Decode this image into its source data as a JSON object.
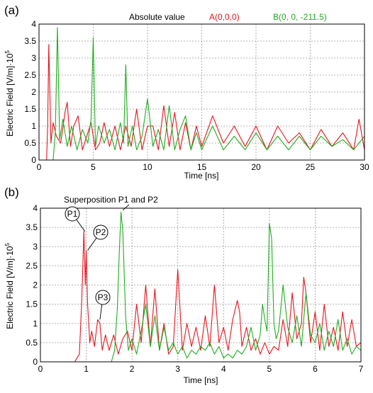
{
  "colors": {
    "series_a": "#e8141c",
    "series_b": "#1fad1f",
    "grid": "#9a9a9a",
    "axis": "#000000"
  },
  "chart_data": [
    {
      "panel_label": "(a)",
      "type": "line",
      "title": "Absolute value",
      "xlabel": "Time [ns]",
      "ylabel": "Electric Field [V/m]·10",
      "ylabel_exponent": "5",
      "xlim": [
        0,
        30
      ],
      "ylim": [
        0,
        4
      ],
      "xticks": [
        0,
        5,
        10,
        15,
        20,
        25,
        30
      ],
      "yticks": [
        0,
        0.5,
        1,
        1.5,
        2,
        2.5,
        3,
        3.5,
        4
      ],
      "grid": true,
      "legend_position": "top",
      "series": [
        {
          "name": "A(0,0,0)",
          "color": "#e8141c",
          "x": [
            0,
            0.7,
            0.8,
            0.9,
            1.0,
            1.1,
            1.3,
            1.6,
            2.0,
            2.4,
            2.6,
            2.9,
            3.2,
            3.6,
            4.0,
            4.4,
            4.8,
            5.2,
            5.6,
            6.0,
            6.5,
            7.0,
            7.5,
            8.0,
            8.5,
            9.0,
            9.5,
            10.0,
            10.5,
            11.0,
            11.5,
            12.0,
            12.5,
            13.0,
            13.5,
            14.0,
            14.5,
            15.0,
            16.0,
            17.0,
            18.0,
            19.0,
            20.0,
            21.0,
            22.0,
            23.0,
            24.0,
            25.0,
            26.0,
            27.0,
            28.0,
            29.0,
            29.5,
            30.0
          ],
          "y": [
            0,
            0,
            1.0,
            3.4,
            2.0,
            0.5,
            1.1,
            0.7,
            0.5,
            1.4,
            1.7,
            0.4,
            1.0,
            1.3,
            0.3,
            0.7,
            1.1,
            0.3,
            0.5,
            1.1,
            0.4,
            1.0,
            0.3,
            1.0,
            0.4,
            1.5,
            0.3,
            1.0,
            1.0,
            0.3,
            1.6,
            0.4,
            1.4,
            0.3,
            1.1,
            0.3,
            1.0,
            0.4,
            1.3,
            0.5,
            1.0,
            0.4,
            1.0,
            0.3,
            1.0,
            0.5,
            0.8,
            0.3,
            0.9,
            0.4,
            0.8,
            0.3,
            1.2,
            0.3
          ]
        },
        {
          "name": "B(0, 0, -211.5)",
          "color": "#1fad1f",
          "x": [
            0,
            1.3,
            1.5,
            1.7,
            1.9,
            2.2,
            2.6,
            3.0,
            3.5,
            4.0,
            4.5,
            4.8,
            5.0,
            5.2,
            5.5,
            6.0,
            6.5,
            7.0,
            7.5,
            7.8,
            8.0,
            8.2,
            8.6,
            9.0,
            9.5,
            10.0,
            10.5,
            11.0,
            11.5,
            12.0,
            12.5,
            13.0,
            13.5,
            14.0,
            14.5,
            15.0,
            16.0,
            17.0,
            18.0,
            19.0,
            20.0,
            21.0,
            22.0,
            23.0,
            24.0,
            25.0,
            26.0,
            27.0,
            28.0,
            29.0,
            30.0
          ],
          "y": [
            0,
            0,
            0.8,
            3.9,
            0.6,
            1.2,
            0.4,
            1.0,
            0.3,
            0.9,
            0.5,
            1.2,
            3.6,
            0.4,
            1.0,
            0.5,
            0.9,
            0.3,
            1.1,
            0.5,
            2.8,
            0.4,
            1.0,
            0.3,
            0.7,
            1.8,
            0.4,
            0.9,
            0.3,
            1.6,
            0.3,
            0.9,
            1.3,
            0.3,
            0.8,
            0.3,
            1.0,
            0.3,
            0.7,
            0.3,
            0.8,
            0.3,
            0.7,
            0.3,
            0.7,
            0.3,
            0.7,
            0.4,
            0.6,
            0.3,
            0.7
          ]
        }
      ]
    },
    {
      "panel_label": "(b)",
      "type": "line",
      "title": "",
      "xlabel": "Time [ns]",
      "ylabel": "Electric Field [V/m]·10",
      "ylabel_exponent": "5",
      "xlim": [
        0,
        7
      ],
      "ylim": [
        0,
        4
      ],
      "xticks": [
        0,
        1,
        2,
        3,
        4,
        5,
        6,
        7
      ],
      "yticks": [
        0,
        0.5,
        1,
        1.5,
        2,
        2.5,
        3,
        3.5,
        4
      ],
      "grid": true,
      "annotations": [
        {
          "text": "Superposition P1 and P2",
          "x": 1.8,
          "y": 3.95
        },
        {
          "text": "P1",
          "x": 0.97,
          "y": 3.4
        },
        {
          "text": "P2",
          "x": 1.03,
          "y": 2.9
        },
        {
          "text": "P3",
          "x": 1.3,
          "y": 1.1
        }
      ],
      "series": [
        {
          "name": "A(0,0,0)",
          "color": "#e8141c",
          "x": [
            0,
            0.75,
            0.85,
            0.9,
            0.95,
            0.98,
            1.0,
            1.03,
            1.08,
            1.12,
            1.18,
            1.25,
            1.3,
            1.35,
            1.42,
            1.5,
            1.6,
            1.7,
            1.8,
            1.9,
            2.0,
            2.1,
            2.2,
            2.3,
            2.4,
            2.5,
            2.6,
            2.7,
            2.8,
            2.9,
            3.0,
            3.1,
            3.2,
            3.3,
            3.4,
            3.5,
            3.6,
            3.7,
            3.8,
            3.9,
            4.0,
            4.1,
            4.2,
            4.3,
            4.35,
            4.4,
            4.5,
            4.6,
            4.7,
            4.8,
            4.9,
            5.0,
            5.1,
            5.2,
            5.3,
            5.4,
            5.5,
            5.6,
            5.7,
            5.75,
            5.8,
            5.9,
            6.0,
            6.1,
            6.2,
            6.3,
            6.4,
            6.5,
            6.6,
            6.7,
            6.8,
            6.9,
            7.0
          ],
          "y": [
            0,
            0,
            0.2,
            1.5,
            3.4,
            2.0,
            2.9,
            1.5,
            0.5,
            0.8,
            0.4,
            1.1,
            1.0,
            0.3,
            0.7,
            0.3,
            0.7,
            0.2,
            0.6,
            0.8,
            0.3,
            1.5,
            0.5,
            2.0,
            0.4,
            1.9,
            0.3,
            1.0,
            0.2,
            0.4,
            2.4,
            0.3,
            1.0,
            0.4,
            0.9,
            0.3,
            1.2,
            0.4,
            2.0,
            0.5,
            0.9,
            0.3,
            1.1,
            1.6,
            1.3,
            0.4,
            0.9,
            0.3,
            0.6,
            0.2,
            0.5,
            0.2,
            0.4,
            0.3,
            1.1,
            0.4,
            1.8,
            0.6,
            1.0,
            2.2,
            1.8,
            0.5,
            1.3,
            0.3,
            1.5,
            0.4,
            0.9,
            0.3,
            1.3,
            0.4,
            1.1,
            0.4,
            0.5
          ]
        },
        {
          "name": "B(0, 0, -211.5)",
          "color": "#1fad1f",
          "x": [
            0,
            1.55,
            1.62,
            1.68,
            1.72,
            1.76,
            1.8,
            1.86,
            1.92,
            2.0,
            2.1,
            2.2,
            2.3,
            2.4,
            2.5,
            2.6,
            2.7,
            2.8,
            2.9,
            3.0,
            3.1,
            3.2,
            3.3,
            3.4,
            3.5,
            3.6,
            3.7,
            3.8,
            3.9,
            4.0,
            4.1,
            4.2,
            4.3,
            4.4,
            4.5,
            4.6,
            4.7,
            4.8,
            4.85,
            4.9,
            4.95,
            5.0,
            5.05,
            5.1,
            5.15,
            5.2,
            5.25,
            5.3,
            5.4,
            5.5,
            5.6,
            5.7,
            5.8,
            5.9,
            6.0,
            6.1,
            6.2,
            6.3,
            6.4,
            6.5,
            6.6,
            6.7,
            6.8,
            6.9,
            7.0
          ],
          "y": [
            0,
            0,
            0.3,
            1.4,
            2.8,
            3.9,
            3.4,
            1.2,
            0.3,
            0.6,
            0.2,
            0.8,
            1.5,
            0.4,
            1.2,
            0.3,
            0.9,
            0.3,
            0.5,
            0.2,
            0.4,
            0.1,
            0.3,
            0.2,
            0.4,
            0.3,
            0.5,
            0.2,
            0.4,
            0.1,
            0.2,
            0.1,
            0.3,
            0.2,
            0.4,
            0.9,
            0.3,
            0.7,
            1.5,
            1.1,
            0.8,
            3.6,
            3.2,
            1.0,
            0.6,
            0.8,
            1.4,
            2.0,
            0.9,
            0.5,
            1.2,
            0.4,
            1.8,
            0.7,
            0.5,
            1.0,
            0.3,
            0.8,
            0.4,
            1.1,
            0.3,
            0.6,
            0.2,
            0.4,
            0.3
          ]
        }
      ]
    }
  ]
}
